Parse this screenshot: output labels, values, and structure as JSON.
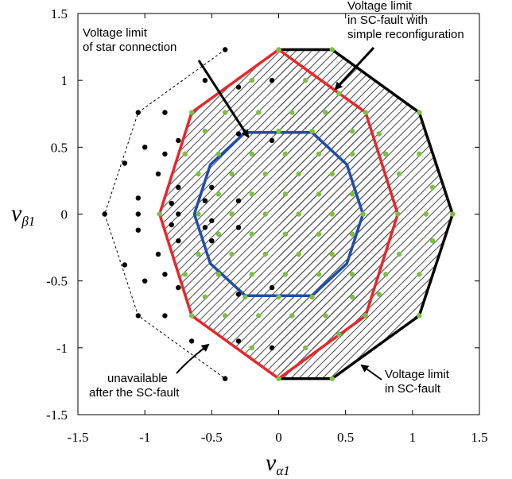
{
  "chart_data": {
    "type": "scatter",
    "title": "",
    "xlabel": "v",
    "xlabel_sub": "α1",
    "ylabel": "v",
    "ylabel_sub": "β1",
    "xlim": [
      -1.5,
      1.5
    ],
    "ylim": [
      -1.5,
      1.5
    ],
    "grid": false,
    "x_ticks": [
      {
        "value": -1.5,
        "label": "-1.5"
      },
      {
        "value": -1,
        "label": "-1"
      },
      {
        "value": -0.5,
        "label": "-0.5"
      },
      {
        "value": 0,
        "label": "0"
      },
      {
        "value": 0.5,
        "label": "0.5"
      },
      {
        "value": 1,
        "label": "1"
      },
      {
        "value": 1.5,
        "label": "1.5"
      }
    ],
    "y_ticks": [
      {
        "value": -1.5,
        "label": "-1.5"
      },
      {
        "value": -1,
        "label": "-1"
      },
      {
        "value": -0.5,
        "label": "-0.5"
      },
      {
        "value": 0,
        "label": "0"
      },
      {
        "value": 0.5,
        "label": "0.5"
      },
      {
        "value": 1,
        "label": "1"
      },
      {
        "value": 1.5,
        "label": "1.5"
      }
    ],
    "polygons": [
      {
        "role": "dashed-outer",
        "color": "#000000",
        "vertices": [
          [
            -0.4,
            1.23
          ],
          [
            -1.05,
            0.76
          ],
          [
            -1.3,
            0
          ],
          [
            -1.05,
            -0.76
          ],
          [
            -0.4,
            -1.23
          ]
        ]
      },
      {
        "role": "sc-fault-limit",
        "color": "#000000",
        "vertices": [
          [
            0,
            1.23
          ],
          [
            0.4,
            1.23
          ],
          [
            1.05,
            0.76
          ],
          [
            1.3,
            0
          ],
          [
            1.05,
            -0.76
          ],
          [
            0.4,
            -1.23
          ],
          [
            0,
            -1.23
          ]
        ]
      },
      {
        "role": "reconfiguration-limit",
        "color": "#e8262a",
        "vertices": [
          [
            0,
            1.23
          ],
          [
            0.65,
            0.76
          ],
          [
            0.89,
            0
          ],
          [
            0.65,
            -0.76
          ],
          [
            0,
            -1.23
          ],
          [
            -0.65,
            -0.76
          ],
          [
            -0.89,
            0
          ],
          [
            -0.65,
            0.76
          ]
        ]
      },
      {
        "role": "star-limit",
        "color": "#1f4ea8",
        "vertices": [
          [
            0.25,
            0.61
          ],
          [
            0.51,
            0.37
          ],
          [
            0.63,
            0
          ],
          [
            0.51,
            -0.37
          ],
          [
            0.25,
            -0.61
          ],
          [
            -0.25,
            -0.61
          ],
          [
            -0.51,
            -0.37
          ],
          [
            -0.63,
            0
          ],
          [
            -0.51,
            0.37
          ],
          [
            -0.25,
            0.61
          ]
        ]
      }
    ],
    "series": [
      {
        "color": "#7cc043",
        "points": [
          [
            0,
            1.23
          ],
          [
            0.4,
            1.23
          ],
          [
            -0.2,
            1.0
          ],
          [
            0.2,
            1.0
          ],
          [
            0.45,
            0.9
          ],
          [
            -0.65,
            0.76
          ],
          [
            -0.4,
            0.76
          ],
          [
            -0.15,
            0.76
          ],
          [
            0.1,
            0.76
          ],
          [
            0.35,
            0.76
          ],
          [
            0.65,
            0.76
          ],
          [
            -0.55,
            0.62
          ],
          [
            -0.25,
            0.62
          ],
          [
            0,
            0.62
          ],
          [
            0.25,
            0.62
          ],
          [
            0.55,
            0.62
          ],
          [
            -0.7,
            0.45
          ],
          [
            -0.45,
            0.45
          ],
          [
            -0.2,
            0.45
          ],
          [
            0.05,
            0.45
          ],
          [
            0.3,
            0.45
          ],
          [
            0.55,
            0.45
          ],
          [
            0.8,
            0.45
          ],
          [
            -0.6,
            0.3
          ],
          [
            -0.35,
            0.3
          ],
          [
            -0.1,
            0.3
          ],
          [
            0.15,
            0.3
          ],
          [
            0.4,
            0.3
          ],
          [
            -0.45,
            0.15
          ],
          [
            -0.2,
            0.15
          ],
          [
            0.05,
            0.15
          ],
          [
            0.3,
            0.15
          ],
          [
            0.55,
            0.15
          ],
          [
            -0.89,
            0
          ],
          [
            -0.6,
            0
          ],
          [
            -0.35,
            0
          ],
          [
            -0.1,
            0
          ],
          [
            0.15,
            0
          ],
          [
            0.4,
            0
          ],
          [
            0.63,
            0
          ],
          [
            0.89,
            0
          ],
          [
            -0.45,
            -0.15
          ],
          [
            -0.2,
            -0.15
          ],
          [
            0.05,
            -0.15
          ],
          [
            0.3,
            -0.15
          ],
          [
            0.55,
            -0.15
          ],
          [
            -0.6,
            -0.3
          ],
          [
            -0.35,
            -0.3
          ],
          [
            -0.1,
            -0.3
          ],
          [
            0.15,
            -0.3
          ],
          [
            0.4,
            -0.3
          ],
          [
            -0.7,
            -0.45
          ],
          [
            -0.45,
            -0.45
          ],
          [
            -0.2,
            -0.45
          ],
          [
            0.05,
            -0.45
          ],
          [
            0.3,
            -0.45
          ],
          [
            0.55,
            -0.45
          ],
          [
            0.8,
            -0.45
          ],
          [
            -0.55,
            -0.62
          ],
          [
            -0.25,
            -0.62
          ],
          [
            0,
            -0.62
          ],
          [
            0.25,
            -0.62
          ],
          [
            0.55,
            -0.62
          ],
          [
            -0.65,
            -0.76
          ],
          [
            -0.4,
            -0.76
          ],
          [
            -0.15,
            -0.76
          ],
          [
            0.1,
            -0.76
          ],
          [
            0.35,
            -0.76
          ],
          [
            0.65,
            -0.76
          ],
          [
            -0.2,
            -1.0
          ],
          [
            0.2,
            -1.0
          ],
          [
            0.45,
            -0.9
          ],
          [
            0,
            -1.23
          ],
          [
            0.4,
            -1.23
          ],
          [
            1.05,
            0.76
          ],
          [
            1.3,
            0
          ],
          [
            1.05,
            -0.76
          ],
          [
            1.05,
            0.45
          ],
          [
            1.05,
            -0.45
          ],
          [
            1.15,
            0.2
          ],
          [
            1.15,
            -0.2
          ],
          [
            0.9,
            0.3
          ],
          [
            0.9,
            -0.3
          ],
          [
            0.75,
            0.6
          ],
          [
            0.75,
            -0.6
          ],
          [
            1.1,
            0.0
          ]
        ]
      },
      {
        "color": "#000000",
        "points": [
          [
            -0.4,
            1.23
          ],
          [
            -0.55,
            1.0
          ],
          [
            -0.3,
            0.95
          ],
          [
            -0.05,
            1.0
          ],
          [
            -0.85,
            0.76
          ],
          [
            -0.75,
            0.55
          ],
          [
            -0.85,
            0.45
          ],
          [
            -0.3,
            0.6
          ],
          [
            -0.05,
            0.55
          ],
          [
            -1.05,
            0.76
          ],
          [
            -1.0,
            0.5
          ],
          [
            -0.9,
            0.3
          ],
          [
            -0.75,
            0.2
          ],
          [
            -0.5,
            0.2
          ],
          [
            -1.15,
            0.38
          ],
          [
            -1.05,
            0.12
          ],
          [
            -0.8,
            0.08
          ],
          [
            -0.55,
            0.1
          ],
          [
            -0.3,
            0.1
          ],
          [
            -1.3,
            0
          ],
          [
            -1.05,
            0
          ],
          [
            -0.75,
            0
          ],
          [
            -0.5,
            -0.05
          ],
          [
            -1.15,
            -0.38
          ],
          [
            -1.05,
            -0.12
          ],
          [
            -0.8,
            -0.08
          ],
          [
            -0.55,
            -0.1
          ],
          [
            -0.3,
            -0.1
          ],
          [
            -1.0,
            -0.5
          ],
          [
            -0.9,
            -0.3
          ],
          [
            -0.75,
            -0.2
          ],
          [
            -0.5,
            -0.2
          ],
          [
            -1.05,
            -0.76
          ],
          [
            -0.75,
            -0.55
          ],
          [
            -0.85,
            -0.45
          ],
          [
            -0.3,
            -0.6
          ],
          [
            -0.05,
            -0.55
          ],
          [
            -0.85,
            -0.76
          ],
          [
            -0.55,
            -1.0
          ],
          [
            -0.3,
            -0.95
          ],
          [
            -0.05,
            -1.0
          ],
          [
            -0.4,
            -1.23
          ],
          [
            -0.65,
            -0.95
          ]
        ]
      }
    ],
    "annotations": [
      {
        "lines": [
          "Voltage limit",
          "of star connection"
        ],
        "at": [
          -0.2,
          0.58
        ]
      },
      {
        "lines": [
          "Voltage limit",
          "in SC-fault with",
          "simple reconfiguration"
        ],
        "at": [
          0.42,
          0.96
        ]
      },
      {
        "lines": [
          "unavailable",
          "after the SC-fault"
        ],
        "at": [
          -0.52,
          -0.96
        ]
      },
      {
        "lines": [
          "Voltage limit",
          "in SC-fault"
        ],
        "at": [
          0.6,
          -1.15
        ]
      }
    ]
  }
}
